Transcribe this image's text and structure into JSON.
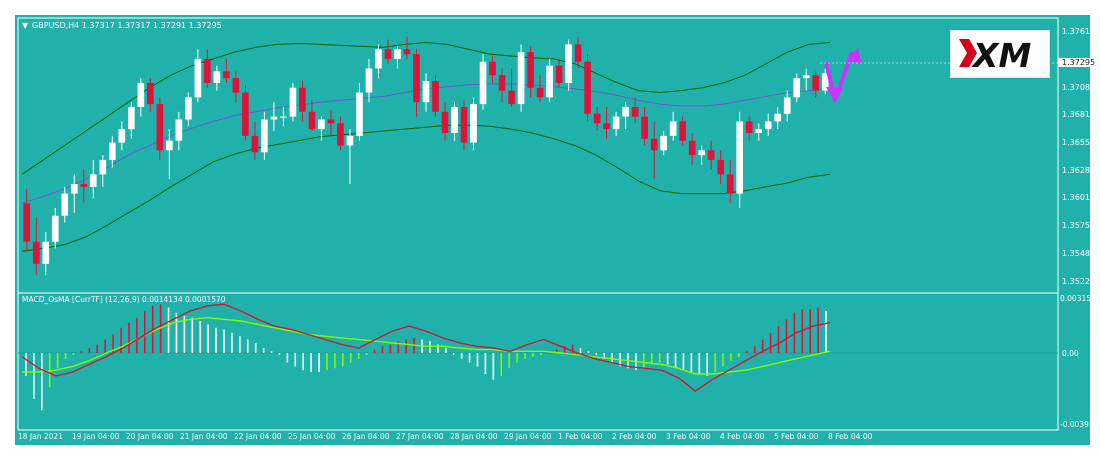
{
  "header": {
    "symbol_line": "GBPUSD,H4  1.37317 1.37317 1.37291 1.37295",
    "indicator_line": "MACD_OsMA [CurrTF] (12,26,9) 0.0014134 0.0001570"
  },
  "brand": {
    "logo_text": "XM",
    "logo_icon": "xm-brand-logo"
  },
  "colors": {
    "background": "#20b2aa",
    "bull_candle": "#ffffff",
    "bear_candle": "#dc143c",
    "bollinger": "#006400",
    "moving_average": "#6a5acd",
    "macd_line": "#c41e3a",
    "signal_line": "#7cfc00",
    "arrow": "#cc33ff"
  },
  "price_labels": [
    "1.37610",
    "1.37295",
    "1.37080",
    "1.36815",
    "1.36550",
    "1.36280",
    "1.36015",
    "1.35750",
    "1.35485",
    "1.35220"
  ],
  "macd_labels": [
    "0.003150",
    "0.00",
    "-0.003932"
  ],
  "time_labels": [
    "18 Jan 2021",
    "19 Jan 04:00",
    "20 Jan 04:00",
    "21 Jan 04:00",
    "22 Jan 04:00",
    "25 Jan 04:00",
    "26 Jan 04:00",
    "27 Jan 04:00",
    "28 Jan 04:00",
    "29 Jan 04:00",
    "1 Feb 04:00",
    "2 Feb 04:00",
    "3 Feb 04:00",
    "4 Feb 04:00",
    "5 Feb 04:00",
    "8 Feb 04:00"
  ],
  "chart_data": [
    {
      "type": "candlestick",
      "symbol": "GBPUSD",
      "timeframe": "H4",
      "ylim": [
        1.351,
        1.3775
      ],
      "current_price": 1.37295,
      "candles": [
        [
          1.3595,
          1.361,
          1.3545,
          1.3555
        ],
        [
          1.3555,
          1.358,
          1.352,
          1.3532
        ],
        [
          1.3532,
          1.3565,
          1.352,
          1.3555
        ],
        [
          1.3555,
          1.359,
          1.3548,
          1.3582
        ],
        [
          1.3582,
          1.3612,
          1.3575,
          1.3605
        ],
        [
          1.3605,
          1.3625,
          1.3585,
          1.3615
        ],
        [
          1.3615,
          1.363,
          1.3595,
          1.3612
        ],
        [
          1.3612,
          1.364,
          1.36,
          1.3625
        ],
        [
          1.3625,
          1.3645,
          1.3612,
          1.364
        ],
        [
          1.364,
          1.3665,
          1.3632,
          1.3658
        ],
        [
          1.3658,
          1.368,
          1.365,
          1.3672
        ],
        [
          1.3672,
          1.37,
          1.3662,
          1.3695
        ],
        [
          1.3695,
          1.3725,
          1.3685,
          1.372
        ],
        [
          1.372,
          1.3725,
          1.369,
          1.3698
        ],
        [
          1.3698,
          1.3705,
          1.364,
          1.365
        ],
        [
          1.365,
          1.3672,
          1.362,
          1.366
        ],
        [
          1.366,
          1.369,
          1.365,
          1.3682
        ],
        [
          1.3682,
          1.371,
          1.3675,
          1.3705
        ],
        [
          1.3705,
          1.3755,
          1.37,
          1.3745
        ],
        [
          1.3745,
          1.3755,
          1.3715,
          1.372
        ],
        [
          1.372,
          1.3738,
          1.3712,
          1.3732
        ],
        [
          1.3732,
          1.3745,
          1.372,
          1.3725
        ],
        [
          1.3725,
          1.3732,
          1.37,
          1.371
        ],
        [
          1.371,
          1.3718,
          1.366,
          1.3665
        ],
        [
          1.3665,
          1.368,
          1.364,
          1.3648
        ],
        [
          1.3648,
          1.369,
          1.364,
          1.3682
        ],
        [
          1.3682,
          1.37,
          1.367,
          1.3685
        ],
        [
          1.3685,
          1.3695,
          1.3675,
          1.3685
        ],
        [
          1.3685,
          1.372,
          1.368,
          1.3715
        ],
        [
          1.3715,
          1.3722,
          1.368,
          1.369
        ],
        [
          1.369,
          1.3702,
          1.367,
          1.3672
        ],
        [
          1.3672,
          1.3685,
          1.366,
          1.3682
        ],
        [
          1.3682,
          1.3692,
          1.3665,
          1.3678
        ],
        [
          1.3678,
          1.3685,
          1.365,
          1.3655
        ],
        [
          1.3655,
          1.3672,
          1.3615,
          1.3665
        ],
        [
          1.3665,
          1.372,
          1.366,
          1.371
        ],
        [
          1.371,
          1.3745,
          1.37,
          1.3735
        ],
        [
          1.3735,
          1.376,
          1.3725,
          1.3755
        ],
        [
          1.3755,
          1.3765,
          1.374,
          1.3745
        ],
        [
          1.3745,
          1.3758,
          1.3735,
          1.3755
        ],
        [
          1.3755,
          1.3768,
          1.3745,
          1.375
        ],
        [
          1.375,
          1.3755,
          1.3685,
          1.37
        ],
        [
          1.37,
          1.373,
          1.369,
          1.3722
        ],
        [
          1.3722,
          1.3728,
          1.3685,
          1.369
        ],
        [
          1.369,
          1.37,
          1.366,
          1.3668
        ],
        [
          1.3668,
          1.37,
          1.366,
          1.3695
        ],
        [
          1.3695,
          1.3702,
          1.365,
          1.3658
        ],
        [
          1.3658,
          1.3705,
          1.365,
          1.3698
        ],
        [
          1.3698,
          1.375,
          1.3692,
          1.3742
        ],
        [
          1.3742,
          1.3748,
          1.372,
          1.3728
        ],
        [
          1.3728,
          1.3735,
          1.37,
          1.3712
        ],
        [
          1.3712,
          1.3735,
          1.3695,
          1.3698
        ],
        [
          1.3698,
          1.376,
          1.369,
          1.3752
        ],
        [
          1.3752,
          1.3758,
          1.3705,
          1.3715
        ],
        [
          1.3715,
          1.3728,
          1.37,
          1.3705
        ],
        [
          1.3705,
          1.3745,
          1.37,
          1.3738
        ],
        [
          1.3738,
          1.3745,
          1.3715,
          1.372
        ],
        [
          1.372,
          1.3765,
          1.3712,
          1.376
        ],
        [
          1.376,
          1.3768,
          1.3735,
          1.3742
        ],
        [
          1.3742,
          1.375,
          1.368,
          1.3688
        ],
        [
          1.3688,
          1.3695,
          1.367,
          1.3678
        ],
        [
          1.3678,
          1.3695,
          1.3662,
          1.3672
        ],
        [
          1.3672,
          1.369,
          1.3665,
          1.3685
        ],
        [
          1.3685,
          1.37,
          1.3672,
          1.3695
        ],
        [
          1.3695,
          1.3705,
          1.3678,
          1.3685
        ],
        [
          1.3685,
          1.3695,
          1.3655,
          1.3662
        ],
        [
          1.3662,
          1.368,
          1.362,
          1.365
        ],
        [
          1.365,
          1.367,
          1.3645,
          1.3665
        ],
        [
          1.3665,
          1.369,
          1.366,
          1.368
        ],
        [
          1.368,
          1.3685,
          1.3655,
          1.366
        ],
        [
          1.366,
          1.3668,
          1.3635,
          1.3645
        ],
        [
          1.3645,
          1.3655,
          1.3635,
          1.365
        ],
        [
          1.365,
          1.366,
          1.363,
          1.364
        ],
        [
          1.364,
          1.365,
          1.3615,
          1.3625
        ],
        [
          1.3625,
          1.364,
          1.3595,
          1.3605
        ],
        [
          1.3605,
          1.369,
          1.359,
          1.368
        ],
        [
          1.368,
          1.3685,
          1.366,
          1.3668
        ],
        [
          1.3668,
          1.3678,
          1.366,
          1.3672
        ],
        [
          1.3672,
          1.3688,
          1.3665,
          1.368
        ],
        [
          1.368,
          1.3695,
          1.3672,
          1.3688
        ],
        [
          1.3688,
          1.3712,
          1.368,
          1.3705
        ],
        [
          1.3705,
          1.373,
          1.37,
          1.3725
        ],
        [
          1.3725,
          1.3735,
          1.3712,
          1.3728
        ],
        [
          1.3728,
          1.3732,
          1.3705,
          1.3712
        ],
        [
          1.3712,
          1.3735,
          1.3708,
          1.373
        ]
      ],
      "bollinger_upper": [
        1.3625,
        1.364,
        1.3655,
        1.367,
        1.3685,
        1.37,
        1.3715,
        1.3728,
        1.3738,
        1.3745,
        1.3752,
        1.3757,
        1.376,
        1.3761,
        1.376,
        1.3759,
        1.3758,
        1.3757,
        1.376,
        1.3762,
        1.376,
        1.3755,
        1.375,
        1.3748,
        1.3746,
        1.3745,
        1.374,
        1.373,
        1.372,
        1.3712,
        1.371,
        1.3712,
        1.3715,
        1.372,
        1.3728,
        1.374,
        1.3752,
        1.376,
        1.3762
      ],
      "bollinger_middle": [
        1.3595,
        1.3602,
        1.361,
        1.362,
        1.3632,
        1.3645,
        1.3655,
        1.3665,
        1.3673,
        1.368,
        1.3686,
        1.369,
        1.3694,
        1.3697,
        1.37,
        1.3702,
        1.3704,
        1.3706,
        1.371,
        1.3714,
        1.3716,
        1.3718,
        1.3719,
        1.3719,
        1.3718,
        1.3716,
        1.3714,
        1.3711,
        1.3707,
        1.3702,
        1.3698,
        1.3696,
        1.3696,
        1.3698,
        1.3702,
        1.3706,
        1.371,
        1.3712,
        1.3714
      ],
      "bollinger_lower": [
        1.3545,
        1.3548,
        1.3552,
        1.356,
        1.3572,
        1.3585,
        1.3598,
        1.3612,
        1.3625,
        1.3638,
        1.3646,
        1.3652,
        1.3656,
        1.366,
        1.3664,
        1.3666,
        1.3668,
        1.367,
        1.3672,
        1.3674,
        1.3676,
        1.3676,
        1.3675,
        1.3672,
        1.3668,
        1.3662,
        1.3655,
        1.3645,
        1.3632,
        1.3618,
        1.3608,
        1.3605,
        1.3605,
        1.3605,
        1.3608,
        1.3612,
        1.3616,
        1.3622,
        1.3625
      ]
    },
    {
      "type": "bar",
      "title": "MACD_OsMA [CurrTF] (12,26,9)",
      "ylim": [
        -0.003932,
        0.00315
      ],
      "histogram": [
        -0.0012,
        -0.0024,
        -0.003,
        -0.0018,
        -0.0008,
        -0.0003,
        -0.0001,
        0.0001,
        0.0003,
        0.0005,
        0.0008,
        0.0011,
        0.0015,
        0.0018,
        0.0021,
        0.0025,
        0.0028,
        0.0029,
        0.0027,
        0.0024,
        0.0022,
        0.0021,
        0.0019,
        0.0017,
        0.0015,
        0.0014,
        0.0012,
        0.001,
        0.0008,
        0.0006,
        0.0003,
        0.0001,
        -0.0001,
        -0.0005,
        -0.0007,
        -0.0009,
        -0.001,
        -0.001,
        -0.0009,
        -0.0008,
        -0.0007,
        -0.0005,
        -0.0003,
        -0.0001,
        0.0002,
        0.0004,
        0.0005,
        0.0007,
        0.0008,
        0.0009,
        0.0008,
        0.0007,
        0.0005,
        0.0003,
        -0.0001,
        -0.0003,
        -0.0005,
        -0.0007,
        -0.0011,
        -0.0014,
        -0.0012,
        -0.0008,
        -0.0005,
        -0.0003,
        -0.0002,
        -0.0001,
        0.0,
        0.0002,
        0.0004,
        0.0005,
        0.0003,
        0.0001,
        -0.0001,
        -0.0003,
        -0.0005,
        -0.0007,
        -0.0008,
        -0.0009,
        -0.0008,
        -0.0006,
        -0.0005,
        -0.0006,
        -0.0008,
        -0.0009,
        -0.001,
        -0.0011,
        -0.0012,
        -0.001,
        -0.0007,
        -0.0004,
        -0.0002,
        0.0001,
        0.0004,
        0.0008,
        0.0012,
        0.0016,
        0.002,
        0.0024,
        0.0026,
        0.0026,
        0.0027,
        0.0025
      ],
      "macd_line": [
        -0.0002,
        -0.0008,
        -0.0012,
        -0.001,
        -0.0006,
        -0.0002,
        0.0003,
        0.0009,
        0.0015,
        0.002,
        0.0025,
        0.0028,
        0.0029,
        0.0025,
        0.002,
        0.0016,
        0.0014,
        0.0011,
        0.0008,
        0.0005,
        0.0003,
        0.0008,
        0.0013,
        0.0016,
        0.0013,
        0.0009,
        0.0006,
        0.0004,
        0.0003,
        0.0001,
        0.0005,
        0.0008,
        0.0004,
        0.0,
        -0.0003,
        -0.0005,
        -0.0007,
        -0.0008,
        -0.0009,
        -0.0013,
        -0.002,
        -0.0014,
        -0.0009,
        -0.0004,
        0.0001,
        0.0006,
        0.0012,
        0.0016,
        0.0018
      ],
      "signal_line": [
        -0.001,
        -0.001,
        -0.0009,
        -0.0007,
        -0.0004,
        0.0,
        0.0004,
        0.0009,
        0.0014,
        0.0018,
        0.002,
        0.0021,
        0.002,
        0.0019,
        0.0017,
        0.0015,
        0.0013,
        0.0011,
        0.001,
        0.0009,
        0.0008,
        0.0007,
        0.0006,
        0.0005,
        0.0004,
        0.0004,
        0.0003,
        0.0002,
        0.0002,
        0.0001,
        0.0001,
        0.0001,
        0.0,
        -0.0001,
        -0.0002,
        -0.0003,
        -0.0004,
        -0.0005,
        -0.0006,
        -0.0008,
        -0.0011,
        -0.0011,
        -0.001,
        -0.0009,
        -0.0007,
        -0.0005,
        -0.0003,
        -0.0001,
        0.0001
      ]
    }
  ]
}
